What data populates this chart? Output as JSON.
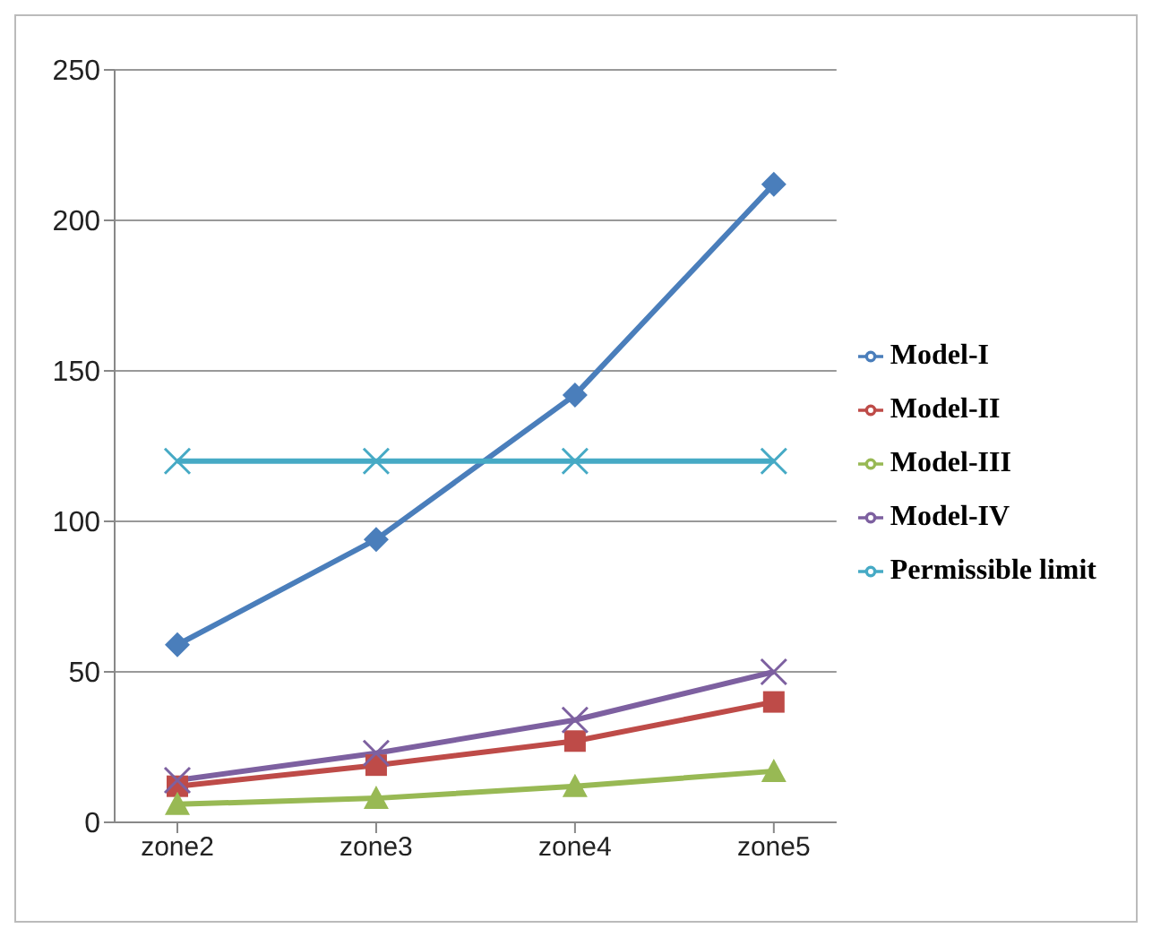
{
  "chart_data": {
    "type": "line",
    "categories": [
      "zone2",
      "zone3",
      "zone4",
      "zone5"
    ],
    "ylim": [
      0,
      250
    ],
    "yticks": [
      0,
      50,
      100,
      150,
      200,
      250
    ],
    "grid": "y",
    "legend": "right",
    "line_style": "solid",
    "series": [
      {
        "name": "Model-I",
        "color": "#4a7ebb",
        "marker": "diamond",
        "values": [
          59,
          94,
          142,
          212
        ]
      },
      {
        "name": "Model-II",
        "color": "#be4b48",
        "marker": "square",
        "values": [
          12,
          19,
          27,
          40
        ]
      },
      {
        "name": "Model-III",
        "color": "#98b954",
        "marker": "triangle",
        "values": [
          6,
          8,
          12,
          17
        ]
      },
      {
        "name": "Model-IV",
        "color": "#7d60a0",
        "marker": "cross",
        "values": [
          14,
          23,
          34,
          50
        ]
      },
      {
        "name": "Permissible limit",
        "color": "#46aac5",
        "marker": "cross",
        "values": [
          120,
          120,
          120,
          120
        ]
      }
    ]
  }
}
